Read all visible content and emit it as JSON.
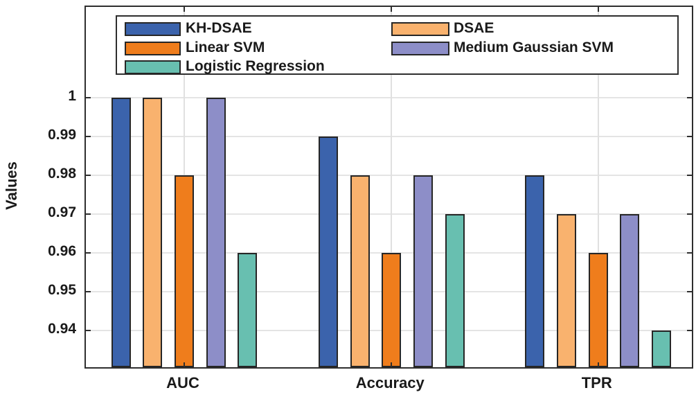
{
  "chart_data": {
    "type": "bar",
    "title": "",
    "xlabel": "",
    "ylabel": "Values",
    "categories": [
      "AUC",
      "Accuracy",
      "TPR"
    ],
    "series": [
      {
        "name": "KH-DSAE",
        "color": "#3B63AC",
        "values": [
          1.0,
          0.99,
          0.98
        ]
      },
      {
        "name": "DSAE",
        "color": "#F9B26E",
        "values": [
          1.0,
          0.98,
          0.97
        ]
      },
      {
        "name": "Linear SVM",
        "color": "#EF7D1C",
        "values": [
          0.98,
          0.96,
          0.96
        ]
      },
      {
        "name": "Medium Gaussian SVM",
        "color": "#8D8EC8",
        "values": [
          1.0,
          0.98,
          0.97
        ]
      },
      {
        "name": "Logistic Regression",
        "color": "#68BFB0",
        "values": [
          0.96,
          0.97,
          0.94
        ]
      }
    ],
    "yticks": [
      0.94,
      0.95,
      0.96,
      0.97,
      0.98,
      0.99,
      1
    ],
    "ytick_labels": [
      "0.94",
      "0.95",
      "0.96",
      "0.97",
      "0.98",
      "0.99",
      "1"
    ],
    "ylim": [
      0.9306,
      1.0234
    ],
    "grid": "on",
    "legend_position": "top-inside",
    "legend_columns": [
      [
        0,
        2,
        4
      ],
      [
        1,
        3
      ]
    ],
    "colors": {
      "axis_border": "#2e2e2e",
      "gridline": "#e4e4e4",
      "bar_edge": "#262626",
      "text": "#1a1a1a",
      "background": "#ffffff"
    }
  }
}
